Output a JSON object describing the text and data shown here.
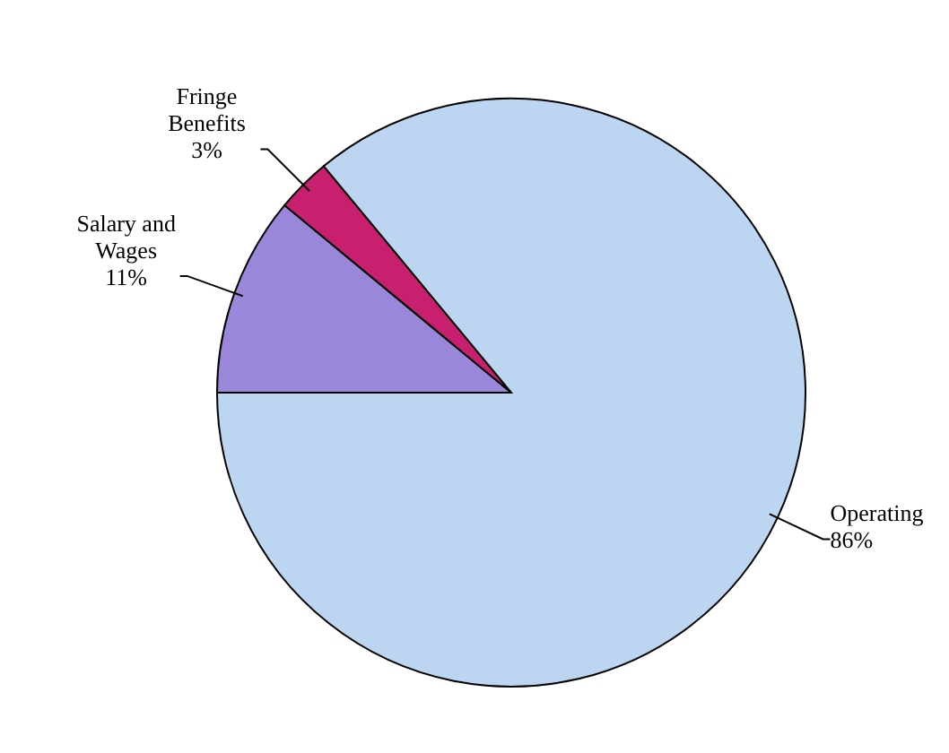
{
  "chart_data": {
    "type": "pie",
    "categories": [
      "Salary and Wages",
      "Fringe Benefits",
      "Operating"
    ],
    "values": [
      11,
      3,
      86
    ],
    "colors": [
      "#9b87d9",
      "#c8206e",
      "#bcd6f2"
    ],
    "value_labels": [
      "11%",
      "3%",
      "86%"
    ],
    "legend": false
  }
}
